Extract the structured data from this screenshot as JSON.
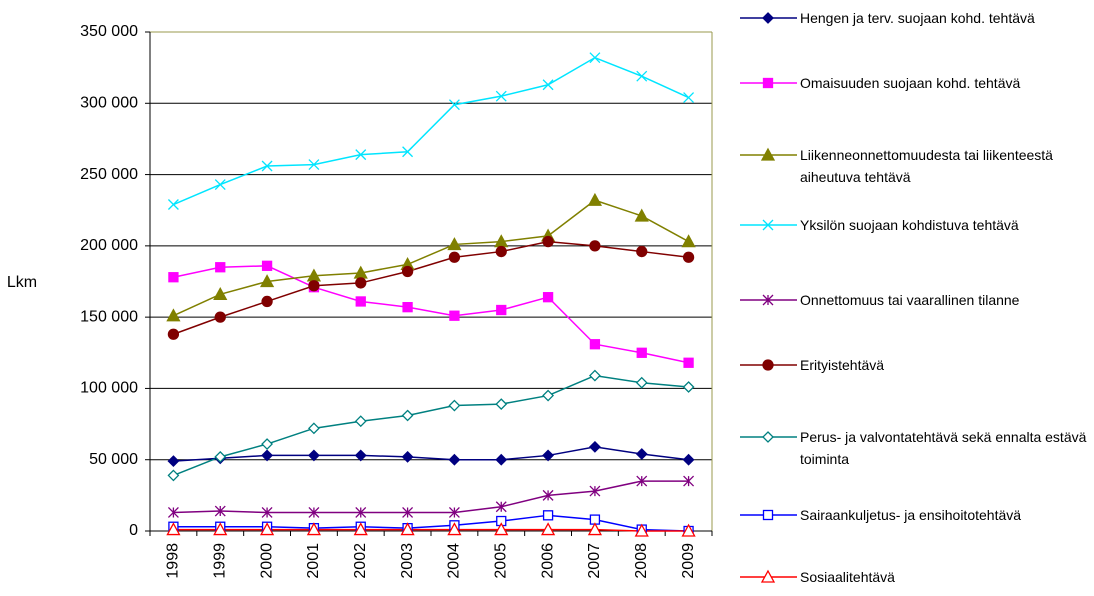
{
  "chart_data": {
    "type": "line",
    "ylabel": "Lkm",
    "categories": [
      "1998",
      "1999",
      "2000",
      "2001",
      "2002",
      "2003",
      "2004",
      "2005",
      "2006",
      "2007",
      "2008",
      "2009"
    ],
    "ylim": [
      0,
      350000
    ],
    "yticks": [
      0,
      {
        "value": 50000,
        "label": "50 000"
      },
      {
        "value": 100000,
        "label": "100 000"
      },
      {
        "value": 150000,
        "label": "150 000"
      },
      {
        "value": 200000,
        "label": "200 000"
      },
      {
        "value": 250000,
        "label": "250 000"
      },
      {
        "value": 300000,
        "label": "300 000"
      },
      {
        "value": 350000,
        "label": "350 000"
      }
    ],
    "grid": true,
    "legend": "right",
    "series": [
      {
        "name": "Hengen ja terv. suojaan kohd. tehtävä",
        "color": "#000080",
        "marker": "diamond",
        "filled": true,
        "values": [
          49000,
          51000,
          53000,
          53000,
          53000,
          52000,
          50000,
          50000,
          53000,
          59000,
          54000,
          50000
        ]
      },
      {
        "name": "Omaisuuden suojaan kohd. tehtävä",
        "color": "#ff00ff",
        "marker": "square",
        "filled": true,
        "values": [
          178000,
          185000,
          186000,
          171000,
          161000,
          157000,
          151000,
          155000,
          164000,
          131000,
          125000,
          118000
        ]
      },
      {
        "name": "Liikenneonnettomuudesta tai liikenteestä aiheutuva tehtävä",
        "color": "#808000",
        "marker": "triangle",
        "filled": true,
        "values": [
          151000,
          166000,
          175000,
          179000,
          181000,
          187000,
          201000,
          203000,
          207000,
          232000,
          221000,
          203000
        ]
      },
      {
        "name": "Yksilön suojaan kohdistuva tehtävä",
        "color": "#00e5ff",
        "marker": "x",
        "filled": false,
        "values": [
          229000,
          243000,
          256000,
          257000,
          264000,
          266000,
          299000,
          305000,
          313000,
          332000,
          319000,
          304000
        ]
      },
      {
        "name": "Onnettomuus tai vaarallinen tilanne",
        "color": "#800080",
        "marker": "star",
        "filled": false,
        "values": [
          13000,
          14000,
          13000,
          13000,
          13000,
          13000,
          13000,
          17000,
          25000,
          28000,
          35000,
          35000
        ]
      },
      {
        "name": "Erityistehtävä",
        "color": "#800000",
        "marker": "circle",
        "filled": true,
        "values": [
          138000,
          150000,
          161000,
          172000,
          174000,
          182000,
          192000,
          196000,
          203000,
          200000,
          196000,
          192000
        ]
      },
      {
        "name": "Perus- ja valvontatehtävä sekä ennalta estävä toiminta",
        "color": "#008080",
        "marker": "diamond",
        "filled": false,
        "values": [
          39000,
          52000,
          61000,
          72000,
          77000,
          81000,
          88000,
          89000,
          95000,
          109000,
          104000,
          101000
        ]
      },
      {
        "name": "Sairaankuljetus- ja ensihoitotehtävä",
        "color": "#0000ff",
        "marker": "square",
        "filled": false,
        "values": [
          3000,
          3000,
          3000,
          2000,
          3000,
          2000,
          4000,
          7000,
          11000,
          8000,
          1000,
          0
        ]
      },
      {
        "name": "Sosiaalitehtävä",
        "color": "#ff0000",
        "marker": "triangle",
        "filled": false,
        "values": [
          1000,
          1000,
          1000,
          1000,
          1000,
          1000,
          1000,
          1000,
          1000,
          1000,
          0,
          0
        ]
      }
    ]
  }
}
